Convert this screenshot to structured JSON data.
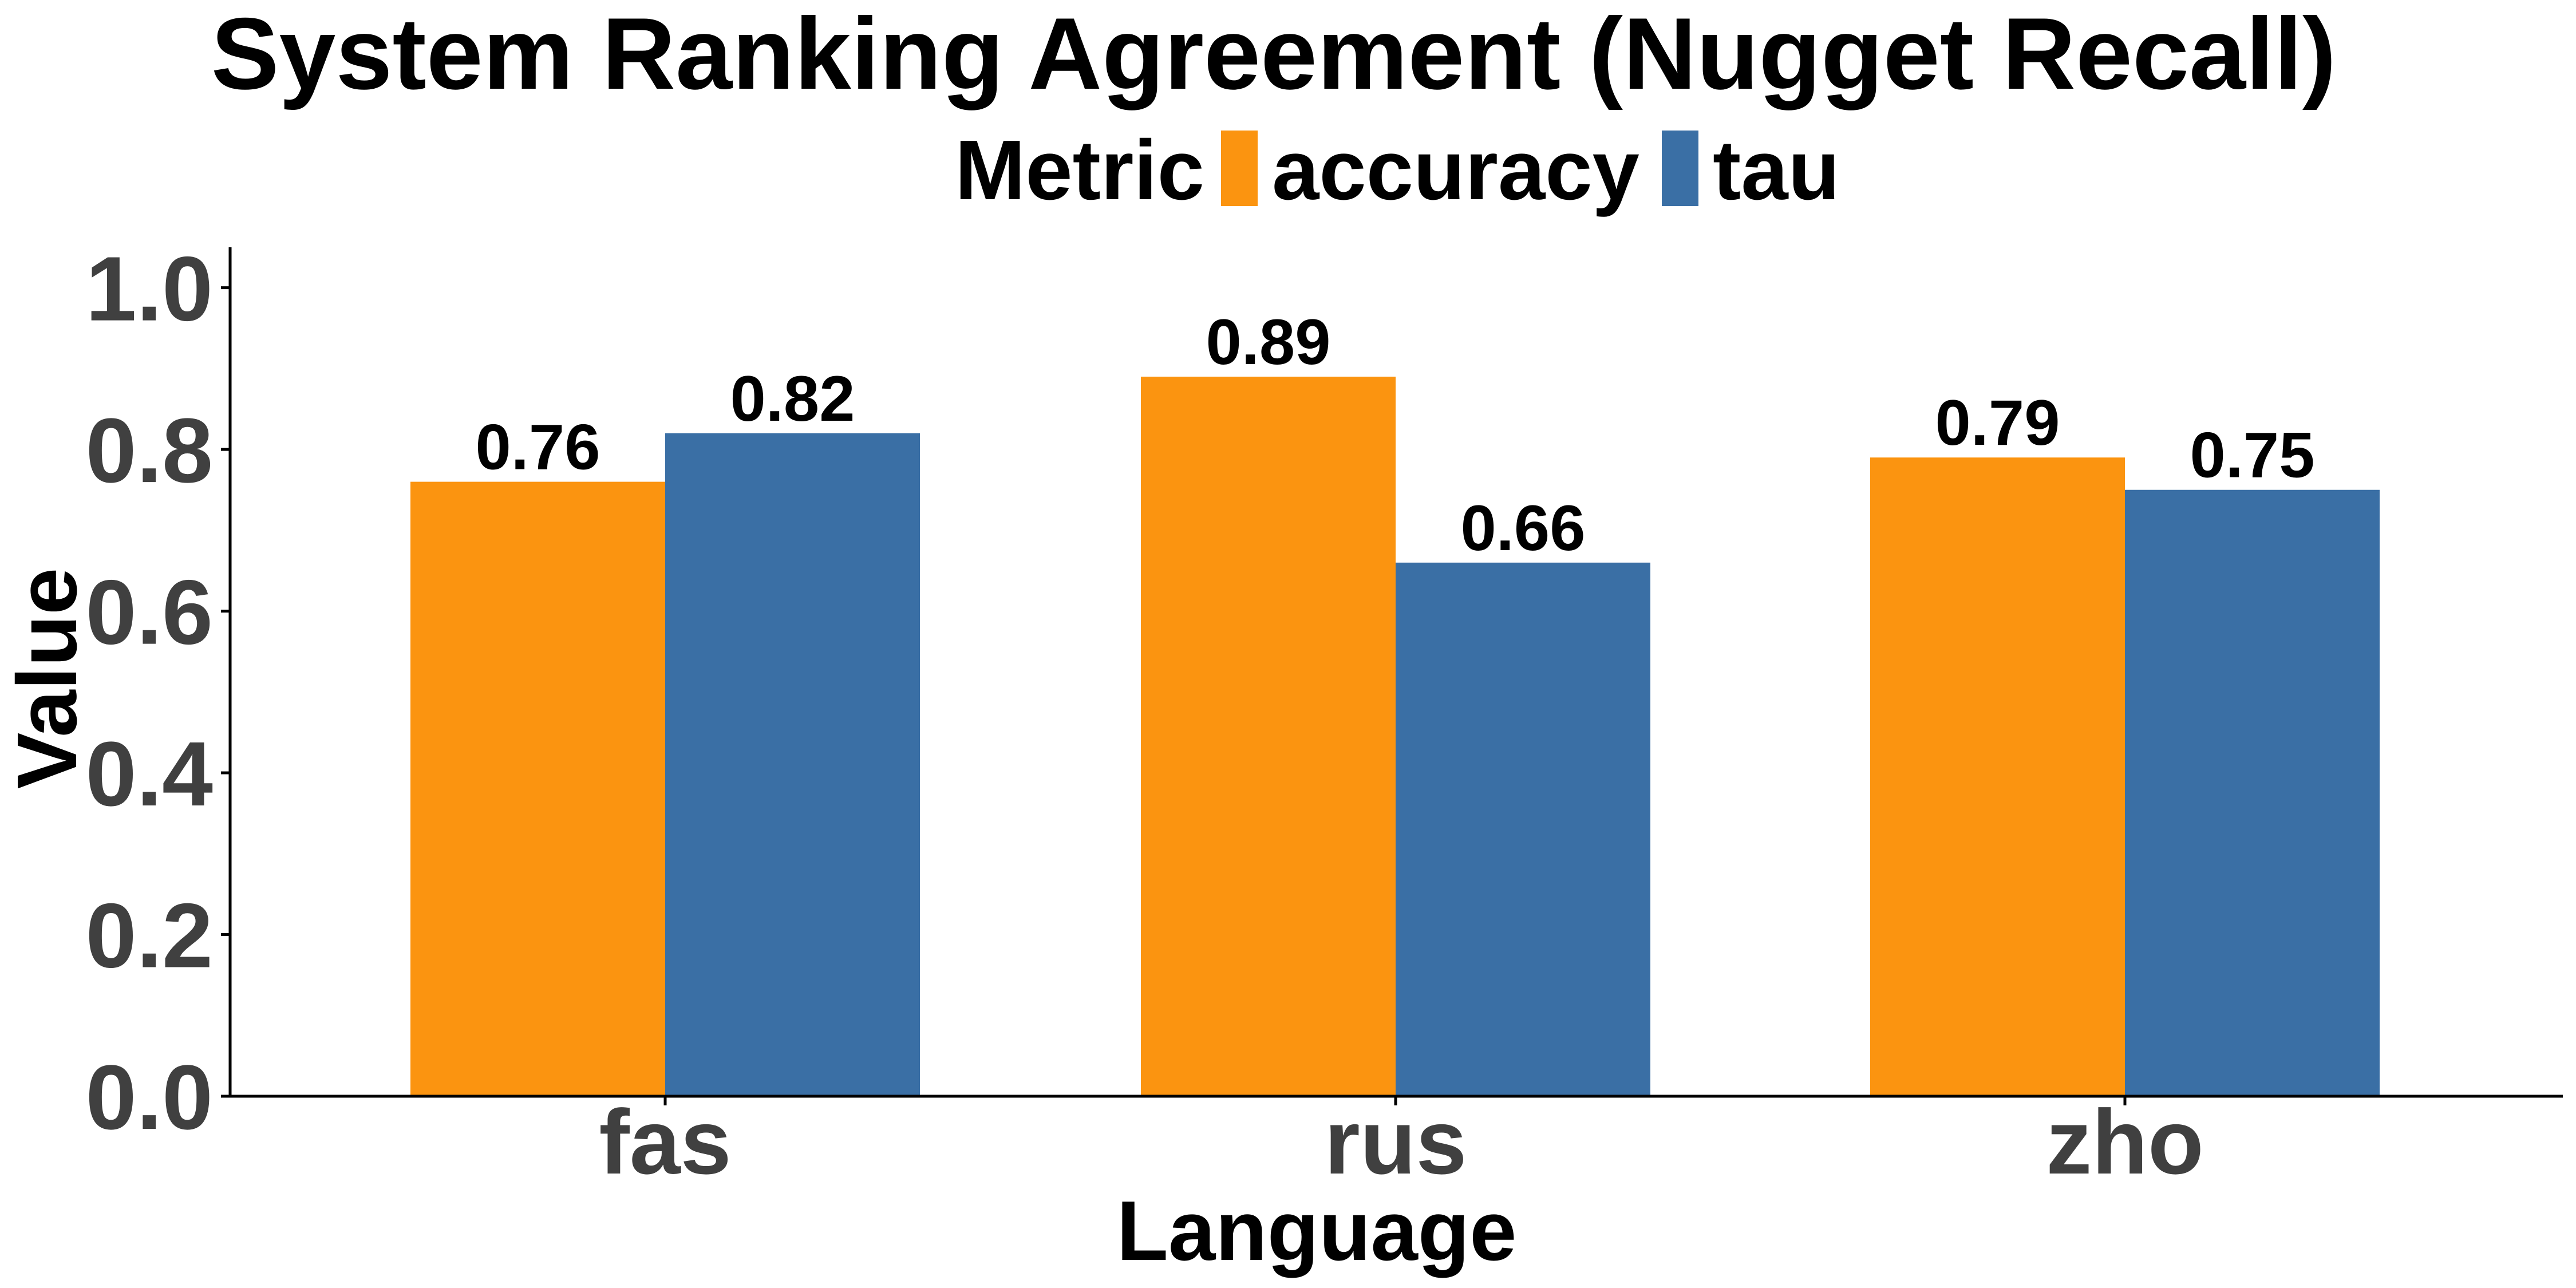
{
  "chart_data": {
    "type": "bar",
    "title": "System Ranking Agreement (Nugget Recall)",
    "xlabel": "Language",
    "ylabel": "Value",
    "categories": [
      "fas",
      "rus",
      "zho"
    ],
    "ylim": [
      0,
      1.05
    ],
    "yticks": [
      "0.0",
      "0.2",
      "0.4",
      "0.6",
      "0.8",
      "1.0"
    ],
    "grid": false,
    "legend": {
      "title": "Metric",
      "position": "top"
    },
    "series": [
      {
        "name": "accuracy",
        "color": "#FB9410",
        "values": [
          0.76,
          0.89,
          0.79
        ],
        "labels": [
          "0.76",
          "0.89",
          "0.79"
        ]
      },
      {
        "name": "tau",
        "color": "#3A6FA5",
        "values": [
          0.82,
          0.66,
          0.75
        ],
        "labels": [
          "0.82",
          "0.66",
          "0.75"
        ]
      }
    ]
  }
}
